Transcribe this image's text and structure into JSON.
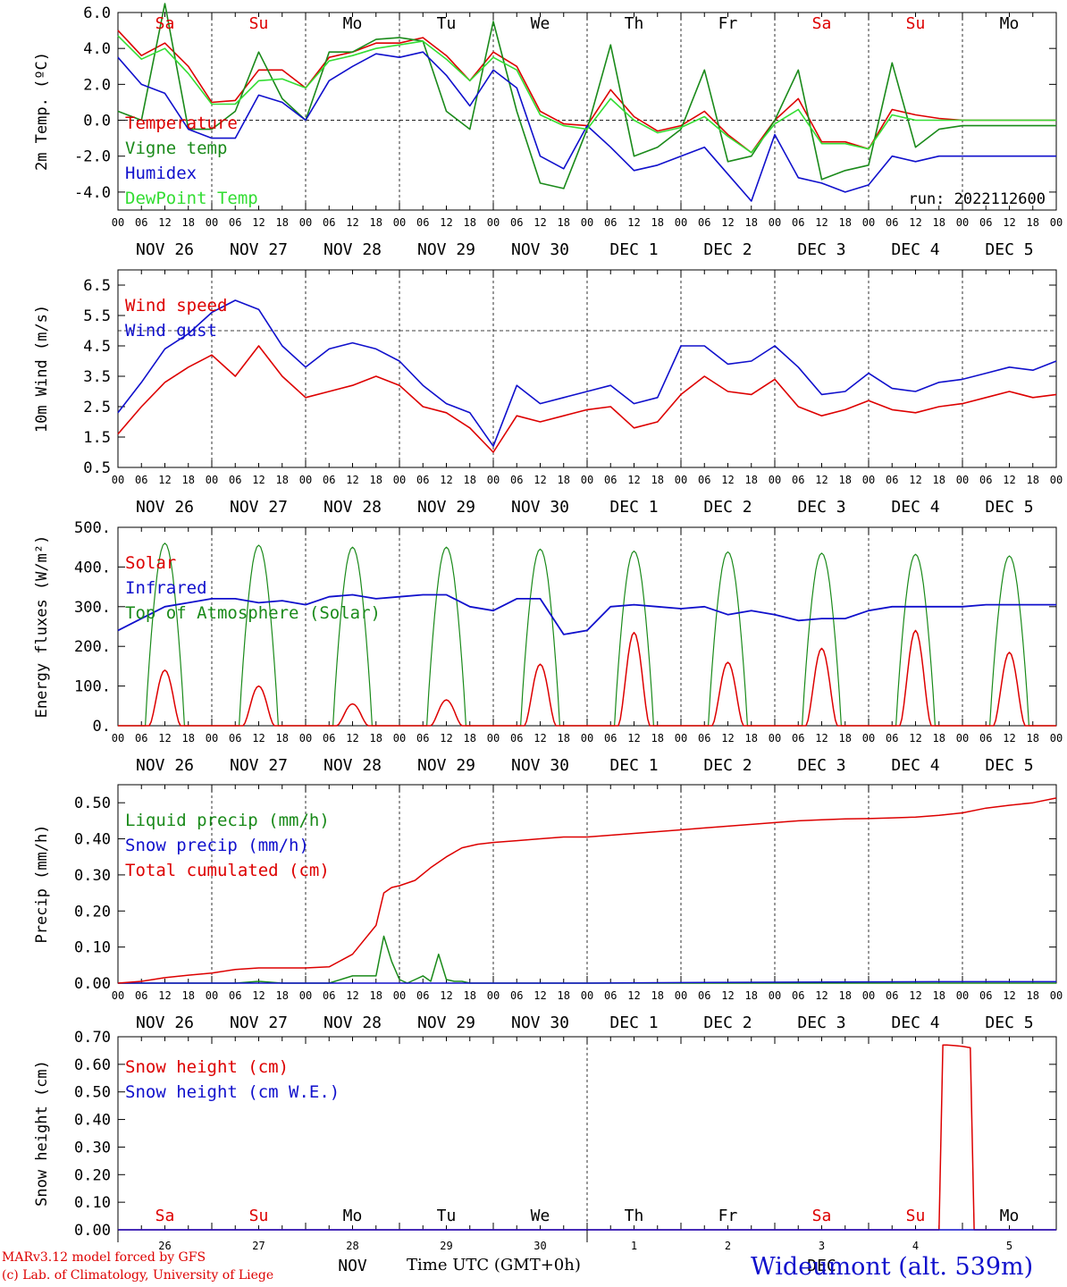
{
  "colors": {
    "red": "#dd0000",
    "green": "#1a8a1a",
    "blue": "#1010cc",
    "lightgreen": "#33dd33",
    "black": "#000000"
  },
  "hour_ticks": [
    "00",
    "06",
    "12",
    "18"
  ],
  "date_labels": [
    "NOV 26",
    "NOV 27",
    "NOV 28",
    "NOV 29",
    "NOV 30",
    "DEC  1",
    "DEC  2",
    "DEC  3",
    "DEC  4",
    "DEC  5"
  ],
  "weekdays": [
    "Sa",
    "Su",
    "Mo",
    "Tu",
    "We",
    "Th",
    "Fr",
    "Sa",
    "Su",
    "Mo"
  ],
  "weekday_colors": [
    "red",
    "red",
    "black",
    "black",
    "black",
    "black",
    "black",
    "red",
    "red",
    "black"
  ],
  "day_numbers": [
    "26",
    "27",
    "28",
    "29",
    "30",
    "1",
    "2",
    "3",
    "4",
    "5"
  ],
  "month_labels": [
    "NOV",
    "DEC"
  ],
  "footer": {
    "model": "MARv3.12 model forced by GFS",
    "credit": "(c) Lab. of Climatology, University of Liege",
    "xaxis": "Time UTC (GMT+0h)",
    "station": "Wideumont (alt. 539m)"
  },
  "chart_data": [
    {
      "type": "line",
      "ylabel": "2m Temp. (ºC)",
      "ylim": [
        -5,
        6
      ],
      "yticks": [
        "6.0",
        "4.0",
        "2.0",
        "0.0",
        "-2.0",
        "-4.0"
      ],
      "ytick_values": [
        6,
        4,
        2,
        0,
        -2,
        -4
      ],
      "ref_line": 0,
      "run_label": "run: 2022112600",
      "x_unit": "hours since NOV 26 00 UTC",
      "series": [
        {
          "name": "Temperature",
          "color": "red",
          "x": [
            0,
            6,
            12,
            18,
            24,
            30,
            36,
            42,
            48,
            54,
            60,
            66,
            72,
            78,
            84,
            90,
            96,
            102,
            108,
            114,
            120,
            126,
            132,
            138,
            144,
            150,
            156,
            162,
            168,
            174,
            180,
            186,
            192,
            198,
            204,
            210,
            216,
            222,
            228,
            234,
            240
          ],
          "y": [
            5.0,
            3.6,
            4.3,
            3.0,
            1.0,
            1.1,
            2.8,
            2.8,
            1.8,
            3.5,
            3.8,
            4.3,
            4.3,
            4.6,
            3.6,
            2.2,
            3.8,
            3.0,
            0.5,
            -0.2,
            -0.3,
            1.7,
            0.2,
            -0.6,
            -0.3,
            0.5,
            -0.8,
            -1.8,
            0.0,
            1.2,
            -1.2,
            -1.2,
            -1.6,
            0.6,
            0.3,
            0.1,
            0.0,
            0.0,
            0.0,
            0.0,
            0.0
          ]
        },
        {
          "name": "Vigne temp",
          "color": "green",
          "x": [
            0,
            6,
            12,
            18,
            24,
            30,
            36,
            42,
            48,
            54,
            60,
            66,
            72,
            78,
            84,
            90,
            96,
            102,
            108,
            114,
            120,
            126,
            132,
            138,
            144,
            150,
            156,
            162,
            168,
            174,
            180,
            186,
            192,
            198,
            204,
            210,
            216,
            222,
            228,
            234,
            240
          ],
          "y": [
            0.5,
            0.0,
            6.5,
            -0.5,
            -0.5,
            0.5,
            3.8,
            1.2,
            0.0,
            3.8,
            3.8,
            4.5,
            4.6,
            4.4,
            0.5,
            -0.5,
            5.5,
            0.5,
            -3.5,
            -3.8,
            -0.5,
            4.2,
            -2.0,
            -1.5,
            -0.5,
            2.8,
            -2.3,
            -2.0,
            0.0,
            2.8,
            -3.3,
            -2.8,
            -2.5,
            3.2,
            -1.5,
            -0.5,
            -0.3,
            -0.3,
            -0.3,
            -0.3,
            -0.3
          ]
        },
        {
          "name": "Humidex",
          "color": "blue",
          "x": [
            0,
            6,
            12,
            18,
            24,
            30,
            36,
            42,
            48,
            54,
            60,
            66,
            72,
            78,
            84,
            90,
            96,
            102,
            108,
            114,
            120,
            126,
            132,
            138,
            144,
            150,
            156,
            162,
            168,
            174,
            180,
            186,
            192,
            198,
            204,
            210,
            216,
            222,
            228,
            234,
            240
          ],
          "y": [
            3.5,
            2.0,
            1.5,
            -0.5,
            -1.0,
            -1.0,
            1.4,
            1.0,
            0.0,
            2.2,
            3.0,
            3.7,
            3.5,
            3.8,
            2.5,
            0.8,
            2.8,
            1.8,
            -2.0,
            -2.7,
            -0.3,
            -1.5,
            -2.8,
            -2.5,
            -2.0,
            -1.5,
            -3.0,
            -4.5,
            -0.8,
            -3.2,
            -3.5,
            -4.0,
            -3.6,
            -2.0,
            -2.3,
            -2.0,
            -2.0,
            -2.0,
            -2.0,
            -2.0,
            -2.0
          ]
        },
        {
          "name": "DewPoint Temp",
          "color": "lightgreen",
          "x": [
            0,
            6,
            12,
            18,
            24,
            30,
            36,
            42,
            48,
            54,
            60,
            66,
            72,
            78,
            84,
            90,
            96,
            102,
            108,
            114,
            120,
            126,
            132,
            138,
            144,
            150,
            156,
            162,
            168,
            174,
            180,
            186,
            192,
            198,
            204,
            210,
            216,
            222,
            228,
            234,
            240
          ],
          "y": [
            4.7,
            3.4,
            4.0,
            2.6,
            0.9,
            0.9,
            2.2,
            2.3,
            1.8,
            3.3,
            3.6,
            4.0,
            4.2,
            4.4,
            3.4,
            2.2,
            3.5,
            2.8,
            0.3,
            -0.3,
            -0.5,
            1.2,
            0.0,
            -0.7,
            -0.4,
            0.2,
            -0.9,
            -1.8,
            -0.2,
            0.6,
            -1.3,
            -1.3,
            -1.6,
            0.3,
            0.0,
            0.0,
            0.0,
            0.0,
            0.0,
            0.0,
            0.0
          ]
        }
      ]
    },
    {
      "type": "line",
      "ylabel": "10m Wind (m/s)",
      "ylim": [
        0.5,
        7.0
      ],
      "yticks": [
        "6.5",
        "5.5",
        "4.5",
        "3.5",
        "2.5",
        "1.5",
        "0.5"
      ],
      "ytick_values": [
        6.5,
        5.5,
        4.5,
        3.5,
        2.5,
        1.5,
        0.5
      ],
      "ref_line": 5.0,
      "x_unit": "hours since NOV 26 00 UTC",
      "series": [
        {
          "name": "Wind speed",
          "color": "red",
          "x": [
            0,
            6,
            12,
            18,
            24,
            30,
            36,
            42,
            48,
            54,
            60,
            66,
            72,
            78,
            84,
            90,
            96,
            102,
            108,
            114,
            120,
            126,
            132,
            138,
            144,
            150,
            156,
            162,
            168,
            174,
            180,
            186,
            192,
            198,
            204,
            210,
            216,
            222,
            228,
            234,
            240
          ],
          "y": [
            1.6,
            2.5,
            3.3,
            3.8,
            4.2,
            3.5,
            4.5,
            3.5,
            2.8,
            3.0,
            3.2,
            3.5,
            3.2,
            2.5,
            2.3,
            1.8,
            1.0,
            2.2,
            2.0,
            2.2,
            2.4,
            2.5,
            1.8,
            2.0,
            2.9,
            3.5,
            3.0,
            2.9,
            3.4,
            2.5,
            2.2,
            2.4,
            2.7,
            2.4,
            2.3,
            2.5,
            2.6,
            2.8,
            3.0,
            2.8,
            2.9
          ]
        },
        {
          "name": "Wind gust",
          "color": "blue",
          "x": [
            0,
            6,
            12,
            18,
            24,
            30,
            36,
            42,
            48,
            54,
            60,
            66,
            72,
            78,
            84,
            90,
            96,
            102,
            108,
            114,
            120,
            126,
            132,
            138,
            144,
            150,
            156,
            162,
            168,
            174,
            180,
            186,
            192,
            198,
            204,
            210,
            216,
            222,
            228,
            234,
            240
          ],
          "y": [
            2.3,
            3.3,
            4.4,
            4.9,
            5.6,
            6.0,
            5.7,
            4.5,
            3.8,
            4.4,
            4.6,
            4.4,
            4.0,
            3.2,
            2.6,
            2.3,
            1.2,
            3.2,
            2.6,
            2.8,
            3.0,
            3.2,
            2.6,
            2.8,
            4.5,
            4.5,
            3.9,
            4.0,
            4.5,
            3.8,
            2.9,
            3.0,
            3.6,
            3.1,
            3.0,
            3.3,
            3.4,
            3.6,
            3.8,
            3.7,
            4.0
          ]
        }
      ]
    },
    {
      "type": "line",
      "ylabel": "Energy fluxes (W/m²)",
      "ylim": [
        0,
        500
      ],
      "yticks": [
        "500.",
        "400.",
        "300.",
        "200.",
        "100.",
        "0."
      ],
      "ytick_values": [
        500,
        400,
        300,
        200,
        100,
        0
      ],
      "x_unit": "hours since NOV 26 00 UTC",
      "solar_peaks": [
        140,
        100,
        55,
        65,
        155,
        235,
        160,
        195,
        240,
        185
      ],
      "toa_peaks": [
        460,
        455,
        450,
        450,
        445,
        440,
        438,
        435,
        432,
        428
      ],
      "series": [
        {
          "name": "Solar",
          "color": "red"
        },
        {
          "name": "Infrared",
          "color": "blue",
          "x": [
            0,
            6,
            12,
            18,
            24,
            30,
            36,
            42,
            48,
            54,
            60,
            66,
            72,
            78,
            84,
            90,
            96,
            102,
            108,
            114,
            120,
            126,
            132,
            138,
            144,
            150,
            156,
            162,
            168,
            174,
            180,
            186,
            192,
            198,
            204,
            210,
            216,
            222,
            228,
            234,
            240
          ],
          "y": [
            240,
            270,
            300,
            310,
            320,
            320,
            310,
            315,
            305,
            325,
            330,
            320,
            325,
            330,
            330,
            300,
            290,
            320,
            320,
            230,
            240,
            300,
            305,
            300,
            295,
            300,
            280,
            290,
            280,
            265,
            270,
            270,
            290,
            300,
            300,
            300,
            300,
            305,
            305,
            305,
            305
          ]
        },
        {
          "name": "Top of Atmosphere (Solar)",
          "color": "green"
        }
      ]
    },
    {
      "type": "line",
      "ylabel": "Precip (mm/h)",
      "ylim": [
        0,
        0.55
      ],
      "yticks": [
        "0.50",
        "0.40",
        "0.30",
        "0.20",
        "0.10",
        "0.00"
      ],
      "ytick_values": [
        0.5,
        0.4,
        0.3,
        0.2,
        0.1,
        0.0
      ],
      "x_unit": "hours since NOV 26 00 UTC",
      "series": [
        {
          "name": "Liquid precip (mm/h)",
          "color": "green",
          "x": [
            0,
            6,
            12,
            18,
            24,
            30,
            36,
            42,
            48,
            54,
            60,
            66,
            68,
            70,
            72,
            74,
            76,
            78,
            80,
            82,
            84,
            86,
            88,
            90,
            96,
            102,
            108,
            114,
            120,
            126,
            132,
            138,
            144,
            150,
            156,
            162,
            168,
            174,
            180,
            186,
            192,
            198,
            204,
            210,
            216,
            222,
            228,
            234,
            240
          ],
          "y": [
            0,
            0,
            0,
            0,
            0,
            0,
            0.005,
            0,
            0,
            0,
            0.02,
            0.02,
            0.13,
            0.06,
            0.01,
            0,
            0.01,
            0.02,
            0.005,
            0.08,
            0.01,
            0.005,
            0.005,
            0,
            0,
            0,
            0,
            0,
            0,
            0,
            0,
            0,
            0,
            0,
            0,
            0,
            0,
            0,
            0,
            0,
            0,
            0,
            0,
            0,
            0,
            0,
            0,
            0,
            0
          ]
        },
        {
          "name": "Snow precip (mm/h)",
          "color": "blue",
          "x": [
            0,
            120,
            150,
            210,
            216,
            228,
            240
          ],
          "y": [
            0,
            0,
            0.002,
            0.004,
            0.004,
            0.004,
            0.004
          ]
        },
        {
          "name": "Total cumulated (cm)",
          "color": "red",
          "x": [
            0,
            6,
            12,
            18,
            24,
            30,
            36,
            42,
            48,
            54,
            60,
            66,
            68,
            70,
            72,
            76,
            80,
            84,
            88,
            92,
            96,
            102,
            108,
            114,
            120,
            126,
            132,
            138,
            144,
            150,
            156,
            162,
            168,
            174,
            180,
            186,
            192,
            198,
            204,
            210,
            216,
            222,
            228,
            234,
            240
          ],
          "y": [
            0,
            0.005,
            0.015,
            0.022,
            0.028,
            0.038,
            0.042,
            0.042,
            0.042,
            0.045,
            0.08,
            0.16,
            0.25,
            0.265,
            0.27,
            0.285,
            0.32,
            0.35,
            0.375,
            0.385,
            0.39,
            0.395,
            0.4,
            0.405,
            0.405,
            0.41,
            0.415,
            0.42,
            0.425,
            0.43,
            0.435,
            0.44,
            0.445,
            0.45,
            0.453,
            0.455,
            0.456,
            0.458,
            0.46,
            0.465,
            0.472,
            0.485,
            0.493,
            0.5,
            0.513
          ]
        }
      ]
    },
    {
      "type": "line",
      "ylabel": "Snow height (cm)",
      "ylim": [
        0,
        0.7
      ],
      "yticks": [
        "0.70",
        "0.60",
        "0.50",
        "0.40",
        "0.30",
        "0.20",
        "0.10",
        "0.00"
      ],
      "ytick_values": [
        0.7,
        0.6,
        0.5,
        0.4,
        0.3,
        0.2,
        0.1,
        0.0
      ],
      "x_unit": "hours since NOV 26 00 UTC",
      "series": [
        {
          "name": "Snow height (cm)",
          "color": "red",
          "x": [
            0,
            210,
            211,
            212,
            214,
            216,
            218,
            219,
            220,
            240
          ],
          "y": [
            0,
            0,
            0.67,
            0.67,
            0.668,
            0.665,
            0.66,
            0,
            0,
            0
          ]
        },
        {
          "name": "Snow height (cm W.E.)",
          "color": "blue",
          "x": [
            0,
            240
          ],
          "y": [
            0,
            0
          ]
        }
      ]
    }
  ]
}
